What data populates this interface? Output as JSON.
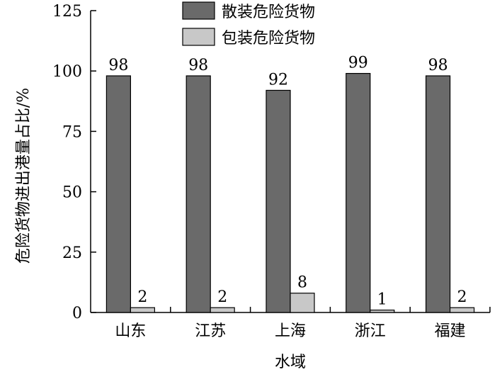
{
  "chart_data": {
    "type": "bar",
    "categories": [
      "山东",
      "江苏",
      "上海",
      "浙江",
      "福建"
    ],
    "series": [
      {
        "name": "散装危险货物",
        "values": [
          98,
          98,
          92,
          99,
          98
        ],
        "color": "#6a6a6a"
      },
      {
        "name": "包装危险货物",
        "values": [
          2,
          2,
          8,
          1,
          2
        ],
        "color": "#c8c8c8"
      }
    ],
    "xlabel": "水域",
    "ylabel": "危险货物进出港量占比/%",
    "ylim": [
      0,
      125
    ],
    "yticks": [
      0,
      25,
      50,
      75,
      100,
      125
    ],
    "grid": false,
    "legend_position": "top-center"
  }
}
